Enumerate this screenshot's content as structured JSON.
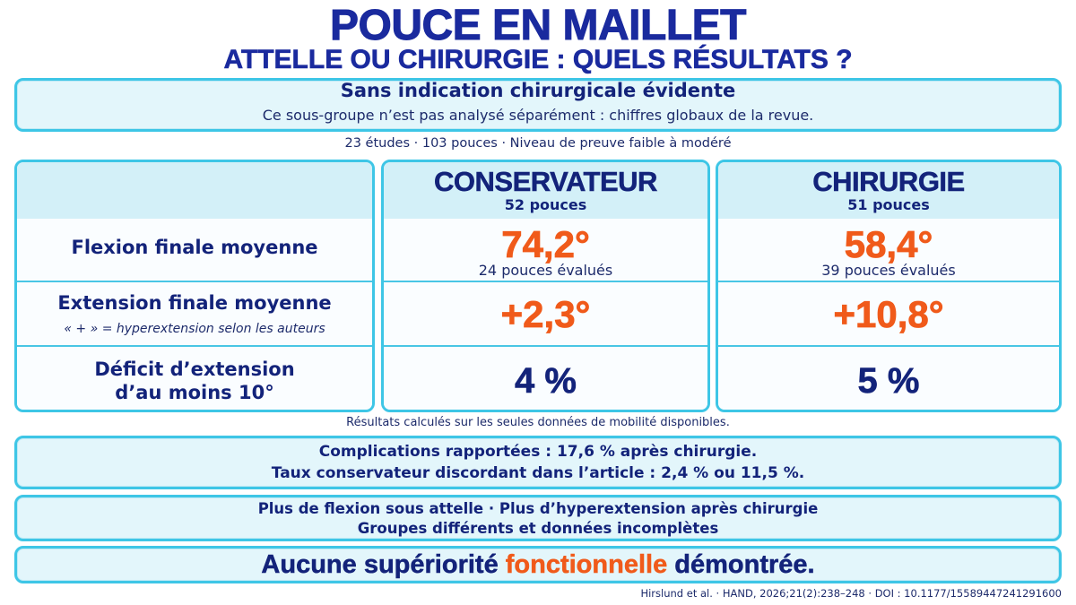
{
  "title": "POUCE EN MAILLET",
  "subtitle": "ATTELLE OU CHIRURGIE : QUELS RÉSULTATS ?",
  "intro": {
    "heading": "Sans indication chirurgicale évidente",
    "text": "Ce sous-groupe n’est pas analysé séparément : chiffres globaux de la revue."
  },
  "meta": "23 études · 103 pouces · Niveau de preuve faible à modéré",
  "rows": {
    "flexion_label": "Flexion finale moyenne",
    "extension_label": "Extension finale moyenne",
    "extension_note": "« + » = hyperextension selon les auteurs",
    "deficit_label_line1": "Déficit d’extension",
    "deficit_label_line2": "d’au moins 10°"
  },
  "conservateur": {
    "title": "CONSERVATEUR",
    "count": "52 pouces",
    "flexion": "74,2°",
    "flexion_eval": "24 pouces évalués",
    "extension": "+2,3°",
    "deficit": "4 %"
  },
  "chirurgie": {
    "title": "CHIRURGIE",
    "count": "51 pouces",
    "flexion": "58,4°",
    "flexion_eval": "39 pouces évalués",
    "extension": "+10,8°",
    "deficit": "5 %"
  },
  "results_note": "Résultats calculés sur les seules données de mobilité disponibles.",
  "complications": {
    "line1": "Complications rapportées : 17,6 % après chirurgie.",
    "line2": "Taux conservateur discordant dans l’article : 2,4 % ou 11,5 %."
  },
  "flexion_summary": {
    "line1": "Plus de flexion sous attelle · Plus d’hyperextension après chirurgie",
    "line2": "Groupes différents et données incomplètes"
  },
  "conclusion": {
    "before": "Aucune supériorité ",
    "highlight": "fonctionnelle",
    "after": " démontrée."
  },
  "source": "Hirslund et al. · HAND, 2026;21(2):238–248 · DOI : 10.1177/15589447241291600",
  "colors": {
    "navy": "#13237a",
    "orange": "#f05a1a",
    "box_fill": "#e3f6fb",
    "box_border": "#3ec6e6"
  }
}
